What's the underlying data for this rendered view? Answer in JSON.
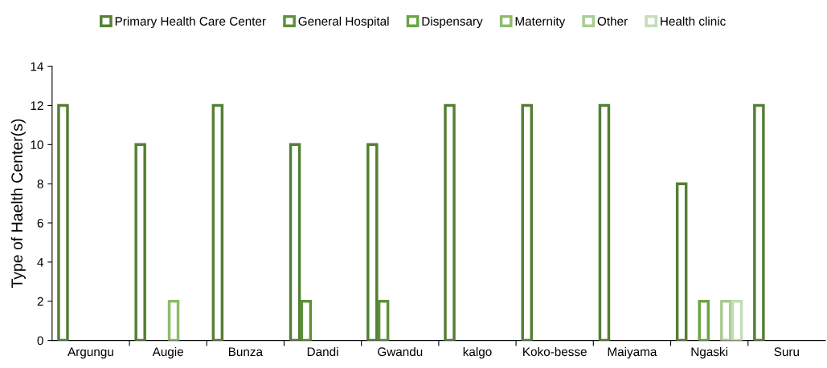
{
  "chart_data": {
    "type": "bar",
    "ylabel": "Type of Haelth Center(s)",
    "categories": [
      "Argungu",
      "Augie",
      "Bunza",
      "Dandi",
      "Gwandu",
      "kalgo",
      "Koko-besse",
      "Maiyama",
      "Ngaski",
      "Suru"
    ],
    "series": [
      {
        "name": "Primary Health Care Center",
        "color": "#557f35",
        "values": [
          12,
          10,
          12,
          10,
          10,
          12,
          12,
          12,
          8,
          12
        ]
      },
      {
        "name": "General Hospital",
        "color": "#5e8f3a",
        "values": [
          null,
          null,
          null,
          2,
          2,
          null,
          null,
          null,
          null,
          null
        ]
      },
      {
        "name": "Dispensary",
        "color": "#6aa443",
        "values": [
          null,
          null,
          null,
          null,
          null,
          null,
          null,
          null,
          2,
          null
        ]
      },
      {
        "name": "Maternity",
        "color": "#8dbb6a",
        "values": [
          null,
          2,
          null,
          null,
          null,
          null,
          null,
          null,
          null,
          null
        ]
      },
      {
        "name": "Other",
        "color": "#a9cc92",
        "values": [
          null,
          null,
          null,
          null,
          null,
          null,
          null,
          null,
          2,
          null
        ]
      },
      {
        "name": "Health clinic",
        "color": "#c5ddb6",
        "values": [
          null,
          null,
          null,
          null,
          null,
          null,
          null,
          null,
          2,
          null
        ]
      }
    ],
    "ylim": [
      0,
      14
    ],
    "yticks": [
      0,
      2,
      4,
      6,
      8,
      10,
      12,
      14
    ],
    "grid": false,
    "legend": "top"
  }
}
